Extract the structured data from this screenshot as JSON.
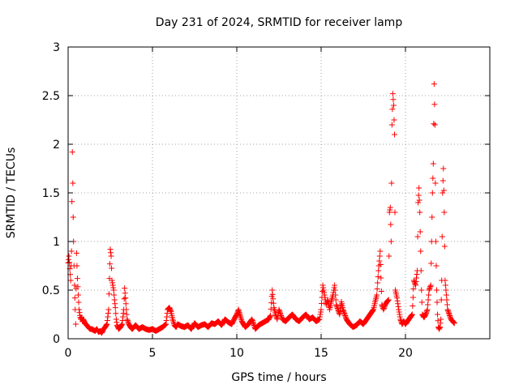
{
  "chart_data": {
    "type": "scatter",
    "title": "Day 231 of 2024, SRMTID for receiver lamp",
    "xlabel": "GPS time / hours",
    "ylabel": "SRMTID / TECUs",
    "xlim": [
      0,
      25
    ],
    "ylim": [
      0,
      3
    ],
    "xticks": [
      0,
      5,
      10,
      15,
      20
    ],
    "xtick_labels": [
      "0",
      "5",
      "10",
      "15",
      "20"
    ],
    "yticks": [
      0,
      0.5,
      1,
      1.5,
      2,
      2.5,
      3
    ],
    "ytick_labels": [
      "0",
      "0.5",
      "1",
      "1.5",
      "2",
      "2.5",
      "3"
    ],
    "grid": true,
    "marker": "+",
    "color": "#ff0000",
    "series": [
      {
        "name": "lamp",
        "x": [
          0.0,
          0.05,
          0.1,
          0.15,
          0.2,
          0.25,
          0.28,
          0.3,
          0.32,
          0.35,
          0.38,
          0.4,
          0.42,
          0.45,
          0.5,
          0.55,
          0.6,
          0.65,
          0.7,
          0.75,
          0.8,
          0.85,
          0.9,
          1.0,
          1.1,
          1.2,
          1.3,
          1.4,
          1.5,
          1.6,
          1.7,
          1.8,
          1.9,
          2.0,
          2.1,
          2.2,
          2.3,
          2.4,
          2.45,
          2.5,
          2.55,
          2.6,
          2.65,
          2.7,
          2.75,
          2.8,
          2.85,
          2.9,
          3.0,
          3.1,
          3.2,
          3.3,
          3.35,
          3.4,
          3.45,
          3.5,
          3.6,
          3.7,
          3.8,
          3.9,
          4.0,
          4.2,
          4.4,
          4.6,
          4.8,
          5.0,
          5.2,
          5.4,
          5.6,
          5.8,
          5.9,
          6.0,
          6.1,
          6.2,
          6.3,
          6.4,
          6.5,
          6.7,
          6.9,
          7.1,
          7.3,
          7.5,
          7.7,
          7.9,
          8.1,
          8.3,
          8.5,
          8.7,
          8.9,
          9.1,
          9.3,
          9.5,
          9.7,
          9.9,
          10.0,
          10.1,
          10.2,
          10.3,
          10.5,
          10.7,
          10.9,
          11.1,
          11.3,
          11.5,
          11.7,
          11.9,
          12.0,
          12.1,
          12.2,
          12.3,
          12.4,
          12.5,
          12.7,
          12.9,
          13.1,
          13.3,
          13.5,
          13.7,
          13.9,
          14.1,
          14.3,
          14.5,
          14.7,
          14.9,
          15.0,
          15.1,
          15.2,
          15.3,
          15.4,
          15.5,
          15.6,
          15.7,
          15.8,
          15.9,
          16.0,
          16.1,
          16.2,
          16.3,
          16.4,
          16.5,
          16.7,
          16.9,
          17.1,
          17.3,
          17.5,
          17.7,
          17.9,
          18.1,
          18.2,
          18.3,
          18.4,
          18.5,
          18.6,
          18.7,
          18.8,
          18.9,
          19.0,
          19.05,
          19.1,
          19.15,
          19.2,
          19.25,
          19.3,
          19.35,
          19.4,
          19.5,
          19.6,
          19.7,
          19.8,
          19.9,
          20.0,
          20.2,
          20.4,
          20.5,
          20.6,
          20.7,
          20.75,
          20.8,
          20.85,
          20.9,
          20.95,
          21.0,
          21.1,
          21.2,
          21.3,
          21.4,
          21.5,
          21.55,
          21.6,
          21.65,
          21.7,
          21.75,
          21.8,
          21.85,
          21.9,
          21.95,
          22.0,
          22.05,
          22.1,
          22.15,
          22.2,
          22.25,
          22.3,
          22.35,
          22.4,
          22.45,
          22.5,
          22.6,
          22.7,
          22.8,
          22.9
        ],
        "y": [
          0.78,
          0.85,
          0.72,
          0.6,
          0.9,
          1.92,
          1.6,
          1.25,
          1.0,
          0.75,
          0.55,
          0.42,
          0.3,
          0.15,
          0.88,
          0.62,
          0.45,
          0.3,
          0.24,
          0.2,
          0.22,
          0.18,
          0.2,
          0.16,
          0.14,
          0.12,
          0.1,
          0.1,
          0.09,
          0.08,
          0.1,
          0.07,
          0.08,
          0.06,
          0.1,
          0.12,
          0.15,
          0.3,
          0.62,
          0.92,
          0.85,
          0.6,
          0.55,
          0.5,
          0.4,
          0.32,
          0.2,
          0.14,
          0.1,
          0.12,
          0.15,
          0.3,
          0.52,
          0.42,
          0.3,
          0.2,
          0.15,
          0.12,
          0.1,
          0.12,
          0.14,
          0.1,
          0.12,
          0.1,
          0.09,
          0.1,
          0.08,
          0.1,
          0.12,
          0.15,
          0.3,
          0.32,
          0.28,
          0.2,
          0.14,
          0.12,
          0.15,
          0.13,
          0.12,
          0.14,
          0.1,
          0.16,
          0.12,
          0.14,
          0.15,
          0.12,
          0.16,
          0.15,
          0.18,
          0.14,
          0.2,
          0.17,
          0.15,
          0.22,
          0.25,
          0.3,
          0.24,
          0.18,
          0.12,
          0.15,
          0.2,
          0.1,
          0.14,
          0.16,
          0.18,
          0.2,
          0.24,
          0.5,
          0.32,
          0.25,
          0.2,
          0.3,
          0.2,
          0.18,
          0.22,
          0.25,
          0.2,
          0.18,
          0.22,
          0.25,
          0.2,
          0.22,
          0.18,
          0.2,
          0.3,
          0.55,
          0.45,
          0.35,
          0.4,
          0.3,
          0.38,
          0.45,
          0.55,
          0.35,
          0.3,
          0.25,
          0.38,
          0.3,
          0.25,
          0.2,
          0.15,
          0.12,
          0.14,
          0.18,
          0.15,
          0.2,
          0.25,
          0.3,
          0.38,
          0.45,
          0.7,
          0.9,
          0.35,
          0.3,
          0.35,
          0.38,
          0.4,
          1.3,
          1.35,
          1.0,
          2.2,
          2.52,
          2.4,
          2.1,
          0.5,
          0.42,
          0.3,
          0.2,
          0.15,
          0.18,
          0.15,
          0.2,
          0.25,
          0.6,
          0.55,
          0.7,
          1.4,
          1.55,
          1.3,
          0.9,
          0.5,
          0.25,
          0.22,
          0.25,
          0.3,
          0.5,
          0.55,
          1.0,
          1.5,
          1.8,
          2.62,
          2.2,
          1.0,
          0.5,
          0.25,
          0.12,
          0.1,
          0.12,
          0.2,
          0.6,
          1.5,
          1.75,
          1.3,
          0.6,
          0.5,
          0.4,
          0.3,
          0.25,
          0.2,
          0.18,
          0.16
        ]
      }
    ]
  }
}
